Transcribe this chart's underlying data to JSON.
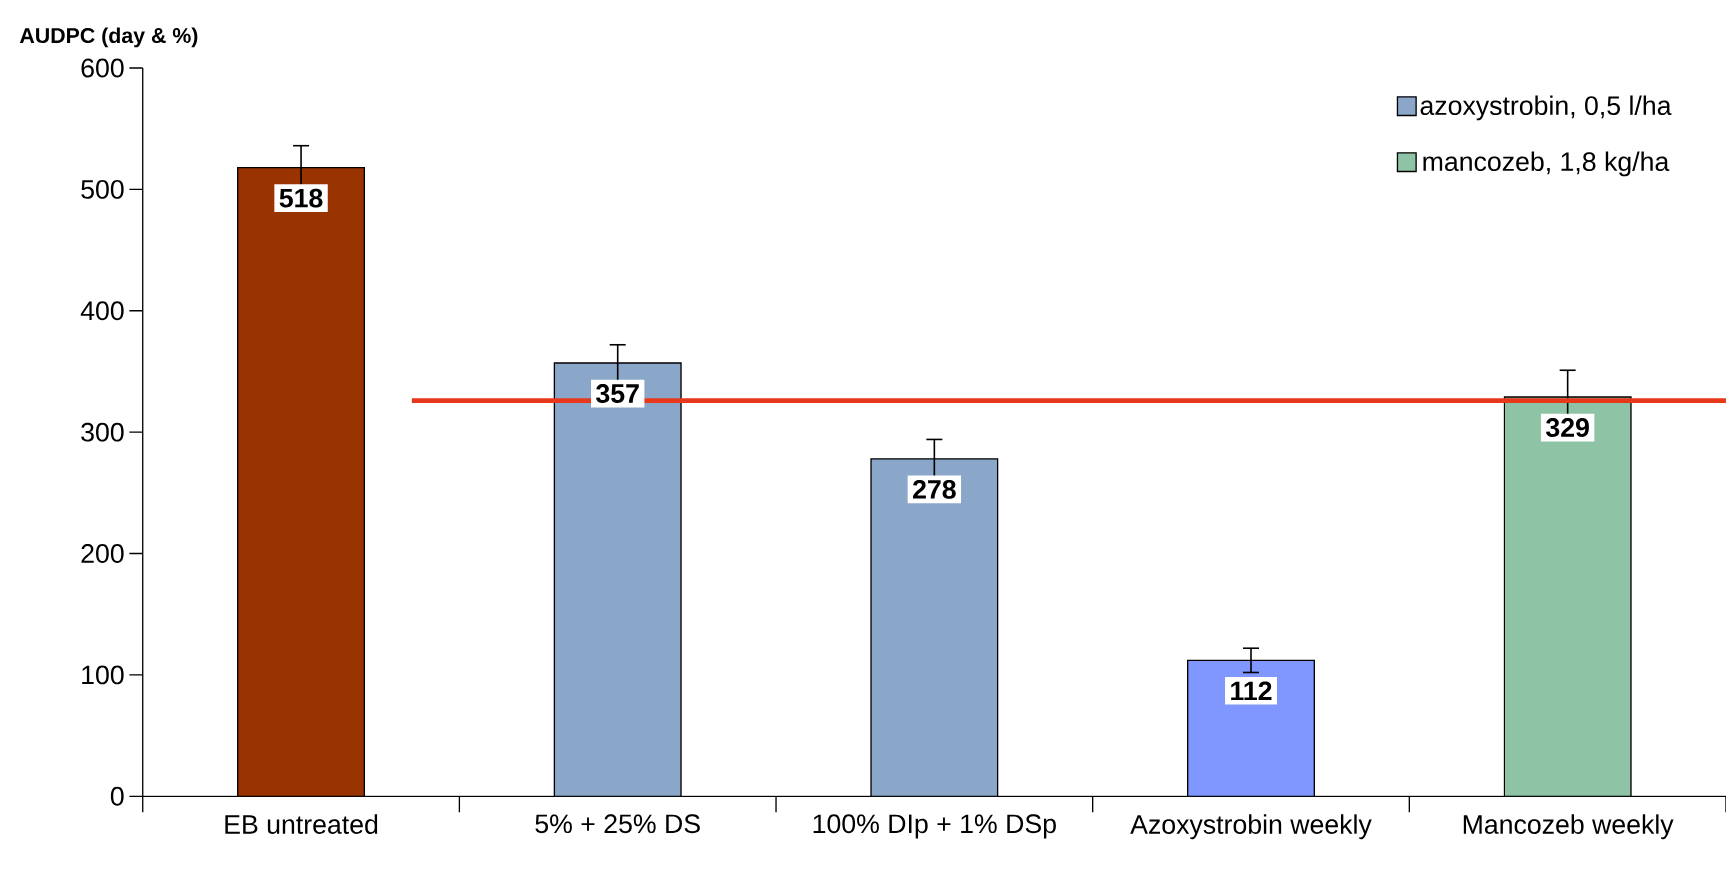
{
  "chart_data": {
    "type": "bar",
    "ylabel": "AUDPC (day & %)",
    "categories": [
      "EB untreated",
      "5% + 25% DS",
      "100% DIp + 1% DSp",
      "Azoxystrobin weekly",
      "Mancozeb weekly"
    ],
    "series": [
      {
        "color": "#993300",
        "values": [
          518,
          null,
          null,
          null,
          null
        ],
        "errors": [
          18,
          null,
          null,
          null,
          null
        ]
      },
      {
        "name": "azoxystrobin, 0,5 l/ha",
        "color": "#8aa6c8",
        "values": [
          null,
          357,
          278,
          null,
          null
        ],
        "errors": [
          null,
          15,
          16,
          null,
          null
        ]
      },
      {
        "color": "#7f97ff",
        "values": [
          null,
          null,
          null,
          112,
          null
        ],
        "errors": [
          null,
          null,
          null,
          10,
          null
        ]
      },
      {
        "name": "mancozeb, 1,8 kg/ha",
        "color": "#8fc3a5",
        "values": [
          null,
          null,
          null,
          null,
          329
        ],
        "errors": [
          null,
          null,
          null,
          null,
          22
        ]
      }
    ],
    "ylim": [
      0,
      600
    ],
    "yticks": [
      0,
      100,
      200,
      300,
      400,
      500,
      600
    ],
    "ref_lines": [
      {
        "axis": "y",
        "value": 326,
        "color": "#e8381b"
      }
    ],
    "data_labels": true,
    "legend": "top right",
    "grid": false
  }
}
